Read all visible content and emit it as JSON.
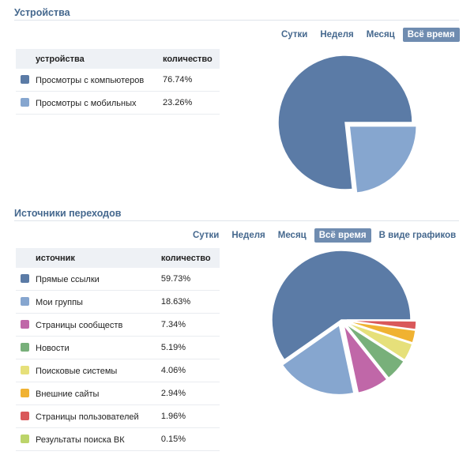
{
  "tabs": [
    "Сутки",
    "Неделя",
    "Месяц",
    "Всё время"
  ],
  "tab_graphs": "В виде графиков",
  "chart_data": [
    {
      "type": "pie",
      "title": "Устройства",
      "header": [
        "устройства",
        "количество"
      ],
      "labels": [
        "Просмотры с компьютеров",
        "Просмотры с мобильных"
      ],
      "values": [
        76.74,
        23.26
      ],
      "display": [
        "76.74%",
        "23.26%"
      ],
      "colors": [
        "#5b7ba6",
        "#86a6cf"
      ]
    },
    {
      "type": "pie",
      "title": "Источники переходов",
      "header": [
        "источник",
        "количество"
      ],
      "labels": [
        "Прямые ссылки",
        "Мои группы",
        "Страницы сообществ",
        "Новости",
        "Поисковые системы",
        "Внешние сайты",
        "Страницы пользователей",
        "Результаты поиска ВК"
      ],
      "values": [
        59.73,
        18.63,
        7.34,
        5.19,
        4.06,
        2.94,
        1.96,
        0.15
      ],
      "display": [
        "59.73%",
        "18.63%",
        "7.34%",
        "5.19%",
        "4.06%",
        "2.94%",
        "1.96%",
        "0.15%"
      ],
      "colors": [
        "#5b7ba6",
        "#86a6cf",
        "#c067a8",
        "#78b07a",
        "#e6e07a",
        "#f0b232",
        "#d9585a",
        "#bcd46a"
      ]
    }
  ]
}
